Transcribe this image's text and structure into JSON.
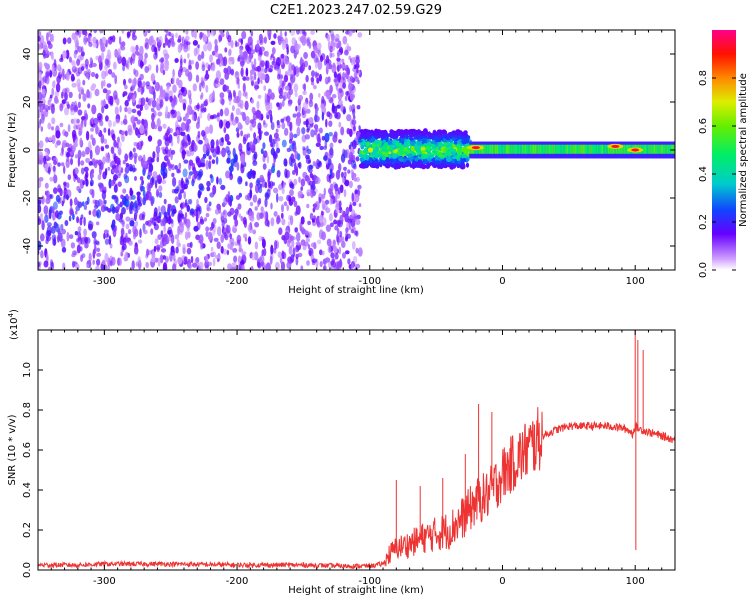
{
  "title": "C2E1.2023.247.02.59.G29",
  "chart_data": [
    {
      "type": "heatmap",
      "xlabel": "Height of straight line (km)",
      "ylabel": "Frequency (Hz)",
      "xlim": [
        -350,
        130
      ],
      "ylim": [
        -50,
        50
      ],
      "xticks": [
        "-300",
        "-200",
        "-100",
        "0",
        "100"
      ],
      "xtick_values": [
        -300,
        -200,
        -100,
        0,
        100
      ],
      "yticks": [
        "-40",
        "-20",
        "0",
        "20",
        "40"
      ],
      "ytick_values": [
        -40,
        -20,
        0,
        20,
        40
      ],
      "colorbar": {
        "label": "Normalized spectral amplitude",
        "range": [
          0,
          1
        ],
        "ticks": [
          "0.0",
          "0.2",
          "0.4",
          "0.6",
          "0.8"
        ],
        "tick_values": [
          0.0,
          0.2,
          0.4,
          0.6,
          0.8
        ]
      },
      "regions": [
        {
          "x_range": [
            -350,
            -107
          ],
          "y_range": [
            -50,
            50
          ],
          "description": "diffuse purple noise, darker band trending from (-350,-30) toward (-110,5)"
        },
        {
          "x_range": [
            -107,
            -25
          ],
          "y_range": [
            -7,
            8
          ],
          "description": "blue-green speckled signal band"
        },
        {
          "x_range": [
            -25,
            130
          ],
          "y_range": [
            -2,
            3
          ],
          "description": "narrow green carrier line at ~1 Hz with red peaks"
        }
      ],
      "peaks": [
        {
          "x": -20,
          "y": 1
        },
        {
          "x": 85,
          "y": 1.5
        },
        {
          "x": 100,
          "y": 0
        }
      ]
    },
    {
      "type": "line",
      "xlabel": "Height of straight line (km)",
      "ylabel": "SNR (10 * v/v)",
      "scale_label": "(x10",
      "scale_exp": "4",
      "scale_close": ")",
      "xlim": [
        -350,
        130
      ],
      "ylim": [
        0,
        1.2
      ],
      "xticks": [
        "-300",
        "-200",
        "-100",
        "0",
        "100"
      ],
      "xtick_values": [
        -300,
        -200,
        -100,
        0,
        100
      ],
      "yticks": [
        "0.0",
        "0.2",
        "0.4",
        "0.6",
        "0.8",
        "1.0"
      ],
      "ytick_values": [
        0.0,
        0.2,
        0.4,
        0.6,
        0.8,
        1.0
      ],
      "color": "#ee3333",
      "series": [
        {
          "x": [
            -350,
            -320,
            -300,
            -250,
            -200,
            -150,
            -120,
            -100,
            -90,
            -85,
            -80,
            -70,
            -60,
            -50,
            -40,
            -30,
            -20,
            -15,
            -10,
            -5,
            0,
            10,
            20,
            30,
            40,
            50,
            60,
            70,
            80,
            90,
            95,
            98,
            100,
            102,
            105,
            110,
            120,
            130
          ],
          "y": [
            0.025,
            0.025,
            0.03,
            0.03,
            0.025,
            0.025,
            0.02,
            0.02,
            0.03,
            0.08,
            0.11,
            0.13,
            0.16,
            0.18,
            0.2,
            0.26,
            0.34,
            0.36,
            0.38,
            0.43,
            0.48,
            0.55,
            0.61,
            0.67,
            0.7,
            0.72,
            0.72,
            0.72,
            0.72,
            0.71,
            0.7,
            0.68,
            0.72,
            0.71,
            0.7,
            0.69,
            0.67,
            0.65
          ]
        }
      ],
      "spikes": [
        {
          "x": -80,
          "y": 0.45
        },
        {
          "x": -62,
          "y": 0.42
        },
        {
          "x": -45,
          "y": 0.46
        },
        {
          "x": -28,
          "y": 0.58
        },
        {
          "x": -18,
          "y": 0.83
        },
        {
          "x": -8,
          "y": 0.79
        },
        {
          "x": 100,
          "y": 1.2
        },
        {
          "x": 100.5,
          "y": 0.1
        },
        {
          "x": 102,
          "y": 1.15
        },
        {
          "x": 106,
          "y": 1.1
        }
      ]
    }
  ]
}
